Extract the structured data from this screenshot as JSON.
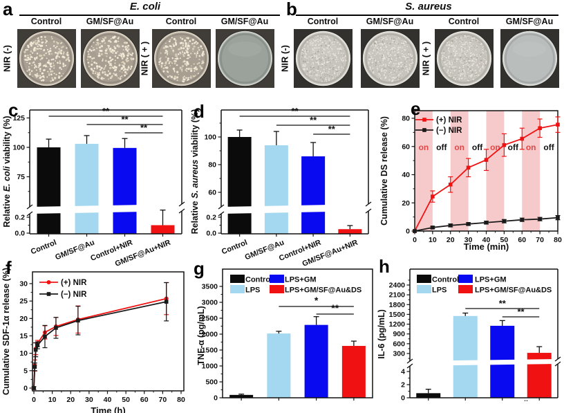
{
  "palette": {
    "black": "#0b0b0b",
    "light_blue": "#a4d8f0",
    "blue": "#0a0af0",
    "red": "#f01212",
    "band_pink": "#f6caca",
    "on_label_red": "#e04848",
    "axis": "#111111"
  },
  "panels_photo": [
    {
      "letter": "a",
      "title": "E. coli",
      "columns": [
        "Control",
        "GM/SF@Au",
        "Control",
        "GM/SF@Au"
      ],
      "row_labels": [
        "NIR (-)",
        "NIR ( + )"
      ],
      "dishes": [
        "colonies",
        "colonies",
        "colonies",
        "clear"
      ]
    },
    {
      "letter": "b",
      "title": "S. aureus",
      "columns": [
        "Control",
        "GM/SF@Au",
        "Control",
        "GM/SF@Au"
      ],
      "row_labels": [
        "NIR (-)",
        "NIR ( + )"
      ],
      "dishes": [
        "colonies",
        "colonies",
        "colonies",
        "clear"
      ]
    }
  ],
  "chart_data": [
    {
      "id": "c",
      "letter": "c",
      "type": "broken-bar",
      "ylabel": [
        {
          "text": "Relative ",
          "italic": false
        },
        {
          "text": "E. coli",
          "italic": true
        },
        {
          "text": " viability (%)",
          "italic": false
        }
      ],
      "categories": [
        "Control",
        "GM/SF@Au",
        "Control+NIR",
        "GM/SF@Au+NIR"
      ],
      "values": [
        100,
        103,
        99.5,
        0.1
      ],
      "errors": [
        7,
        7,
        8,
        0.19
      ],
      "bar_colors": [
        "black",
        "light_blue",
        "blue",
        "red"
      ],
      "upper_ticks": [
        75,
        100,
        125
      ],
      "lower_ticks": [
        {
          "value": 0,
          "label": "0.0"
        },
        {
          "value": 0.2,
          "label": "0.2"
        }
      ],
      "significance": [
        {
          "from": 0,
          "to": 3,
          "label": "**"
        },
        {
          "from": 1,
          "to": 3,
          "label": "**"
        },
        {
          "from": 2,
          "to": 3,
          "label": "**"
        }
      ]
    },
    {
      "id": "d",
      "letter": "d",
      "type": "broken-bar",
      "ylabel": [
        {
          "text": "Relative ",
          "italic": false
        },
        {
          "text": "S. aureus",
          "italic": true
        },
        {
          "text": " viability (%)",
          "italic": false
        }
      ],
      "categories": [
        "Control",
        "GM/SF@Au",
        "Control+NIR",
        "GM/SF@Au+NIR"
      ],
      "values": [
        100,
        94,
        86,
        0.05
      ],
      "errors": [
        5,
        10,
        10,
        0.045
      ],
      "bar_colors": [
        "black",
        "light_blue",
        "blue",
        "red"
      ],
      "upper_ticks": [
        60,
        80,
        100
      ],
      "lower_ticks": [
        {
          "value": 0,
          "label": "0.0"
        },
        {
          "value": 0.2,
          "label": "0.2"
        }
      ],
      "significance": [
        {
          "from": 0,
          "to": 3,
          "label": "**"
        },
        {
          "from": 1,
          "to": 3,
          "label": "**"
        },
        {
          "from": 2,
          "to": 3,
          "label": "**"
        }
      ]
    },
    {
      "id": "e",
      "letter": "e",
      "type": "line",
      "xlabel": "Time (min)",
      "ylabel": [
        {
          "text": "Cumulative DS release (%)",
          "italic": false
        }
      ],
      "x": [
        0,
        10,
        20,
        30,
        40,
        50,
        60,
        70,
        80
      ],
      "xticks": [
        0,
        10,
        20,
        30,
        40,
        50,
        60,
        70,
        80
      ],
      "yticks": [
        0,
        20,
        40,
        60,
        80
      ],
      "series": [
        {
          "name": "(+) NIR",
          "color": "red",
          "marker": "square",
          "y": [
            0,
            24.5,
            33,
            45,
            50.5,
            61,
            65.5,
            73,
            75.5
          ],
          "err": [
            0,
            4,
            5.5,
            6.5,
            7.5,
            8,
            7.5,
            6.5,
            5.5
          ]
        },
        {
          "name": "(−) NIR",
          "color": "black",
          "marker": "square",
          "y": [
            0,
            2.5,
            4,
            5,
            6,
            7,
            8,
            8.5,
            9.5
          ],
          "err": [
            0,
            0.8,
            1,
            1,
            1,
            1.2,
            1.2,
            1.2,
            1.5
          ]
        }
      ],
      "nir_bands": [
        [
          0,
          10
        ],
        [
          20,
          30
        ],
        [
          40,
          50
        ],
        [
          60,
          70
        ]
      ],
      "band_labels": [
        {
          "text": "on",
          "x": 5,
          "color": "red"
        },
        {
          "text": "off",
          "x": 15,
          "color": "black"
        },
        {
          "text": "on",
          "x": 25,
          "color": "red"
        },
        {
          "text": "off",
          "x": 35,
          "color": "black"
        },
        {
          "text": "on",
          "x": 45,
          "color": "red"
        },
        {
          "text": "off",
          "x": 55,
          "color": "black"
        },
        {
          "text": "on",
          "x": 65,
          "color": "red"
        },
        {
          "text": "off",
          "x": 75,
          "color": "black"
        }
      ]
    },
    {
      "id": "f",
      "letter": "f",
      "type": "line",
      "xlabel": "Time (h)",
      "ylabel": [
        {
          "text": "Cumulative SDF-1α release (%)",
          "italic": false
        }
      ],
      "x": [
        0,
        0.5,
        1,
        2,
        6,
        12,
        24,
        72
      ],
      "xticks": [
        0,
        10,
        20,
        30,
        40,
        50,
        60,
        70,
        80
      ],
      "yticks": [
        0,
        5,
        10,
        15,
        20,
        25,
        30
      ],
      "series": [
        {
          "name": "(+) NIR",
          "color": "red",
          "marker": "circle",
          "y": [
            0,
            6.5,
            11.3,
            12.8,
            16,
            17.7,
            19.7,
            25.7
          ],
          "err": [
            0.4,
            1.6,
            1.7,
            0.9,
            1.9,
            2.6,
            3.9,
            4.6
          ]
        },
        {
          "name": "(−) NIR",
          "color": "black",
          "marker": "square",
          "y": [
            0,
            6.1,
            11,
            12.3,
            14.8,
            17.3,
            19.4,
            24.8
          ],
          "err": [
            0.4,
            1.1,
            2,
            1,
            3.2,
            3,
            4.1,
            5.5
          ]
        }
      ]
    },
    {
      "id": "g",
      "letter": "g",
      "type": "bar",
      "ylabel": [
        {
          "text": "TNF-α (pg/mL)",
          "italic": false
        }
      ],
      "legend": [
        {
          "label": "Control",
          "color": "black"
        },
        {
          "label": "LPS",
          "color": "light_blue"
        },
        {
          "label": "LPS+GM",
          "color": "blue"
        },
        {
          "label": "LPS+GM/SF@Au&DS",
          "color": "red"
        }
      ],
      "values": [
        90,
        2020,
        2290,
        1630
      ],
      "errors": [
        25,
        70,
        260,
        150
      ],
      "bar_colors": [
        "black",
        "light_blue",
        "blue",
        "red"
      ],
      "yticks": [
        0,
        500,
        1000,
        1500,
        2000,
        2500,
        3000,
        3500
      ],
      "significance": [
        {
          "from": 1,
          "to": 3,
          "label": "*"
        },
        {
          "from": 2,
          "to": 3,
          "label": "**"
        }
      ]
    },
    {
      "id": "h",
      "letter": "h",
      "type": "broken-bar",
      "ylabel": [
        {
          "text": "IL-6 (pg/mL)",
          "italic": false
        }
      ],
      "legend": [
        {
          "label": "Control",
          "color": "black"
        },
        {
          "label": "LPS",
          "color": "light_blue"
        },
        {
          "label": "LPS+GM",
          "color": "blue"
        },
        {
          "label": "LPS+GM/SF@Au&DS",
          "color": "red"
        }
      ],
      "values": [
        0.7,
        1450,
        1150,
        320
      ],
      "errors": [
        0.6,
        90,
        160,
        190
      ],
      "bar_colors": [
        "black",
        "light_blue",
        "blue",
        "red"
      ],
      "upper_ticks": [
        300,
        600,
        900,
        1200,
        1500,
        1800,
        2100,
        2400
      ],
      "lower_ticks": [
        {
          "value": 0,
          "label": "0"
        },
        {
          "value": 2,
          "label": "2"
        },
        {
          "value": 4,
          "label": "4"
        }
      ],
      "significance": [
        {
          "from": 1,
          "to": 3,
          "label": "**"
        },
        {
          "from": 2,
          "to": 3,
          "label": "**"
        }
      ],
      "watermark": ".."
    }
  ]
}
